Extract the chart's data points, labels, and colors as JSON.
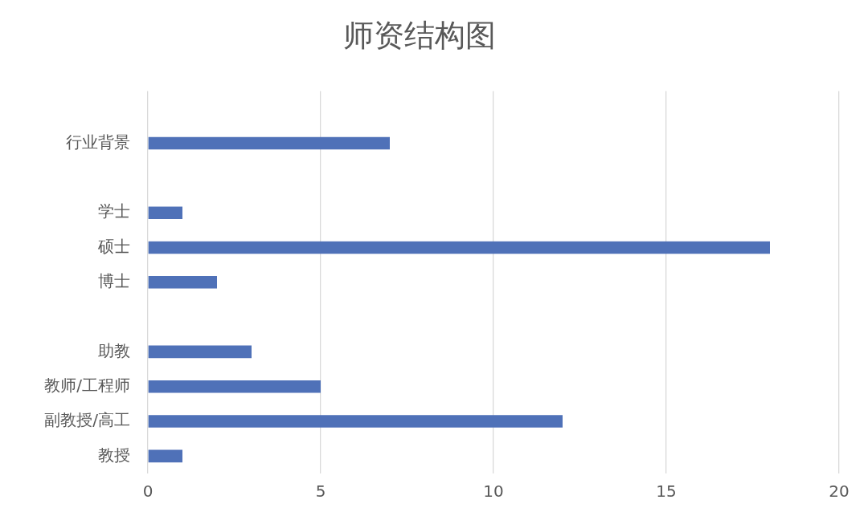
{
  "chart_data": {
    "type": "bar",
    "title": "师资结构图",
    "orientation": "horizontal",
    "categories": [
      null,
      "行业背景",
      null,
      "学士",
      "硕士",
      "博士",
      null,
      "助教",
      "教师/工程师",
      "副教授/高工",
      "教授"
    ],
    "values": [
      null,
      7,
      null,
      1,
      18,
      2,
      null,
      3,
      5,
      12,
      1
    ],
    "color": "#4f71b8",
    "xlim": [
      0,
      20
    ],
    "xticks": [
      0,
      5,
      10,
      15,
      20
    ],
    "grid": "x"
  }
}
